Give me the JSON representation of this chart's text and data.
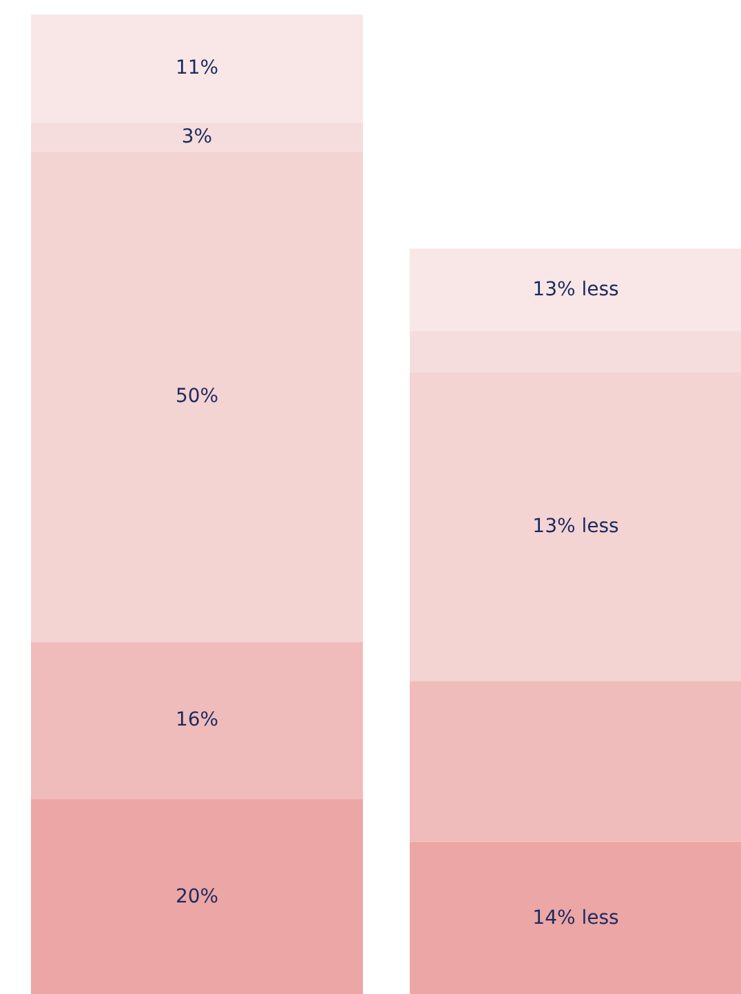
{
  "chart_data": {
    "type": "bar",
    "stacked": true,
    "categories": [
      null,
      null
    ],
    "ylim": [
      0,
      101.4
    ],
    "series": [
      {
        "color": "#eca6a6",
        "values": [
          20,
          15.6
        ],
        "value_labels": [
          "20%",
          null
        ]
      },
      {
        "color": "#f0bcbb",
        "values": [
          16,
          16.4
        ],
        "value_labels": [
          "16%",
          null
        ]
      },
      {
        "color": "#f4d3d3",
        "values": [
          50,
          31.5
        ],
        "value_labels": [
          "50%",
          null
        ]
      },
      {
        "color": "#f6dddd",
        "values": [
          3,
          4.2
        ],
        "value_labels": [
          "3%",
          null
        ]
      },
      {
        "color": "#f9e7e7",
        "values": [
          11,
          8.4
        ],
        "value_labels": [
          "11%",
          null
        ]
      }
    ],
    "annotations": [
      "14% less",
      "13% less",
      "13% less"
    ]
  }
}
